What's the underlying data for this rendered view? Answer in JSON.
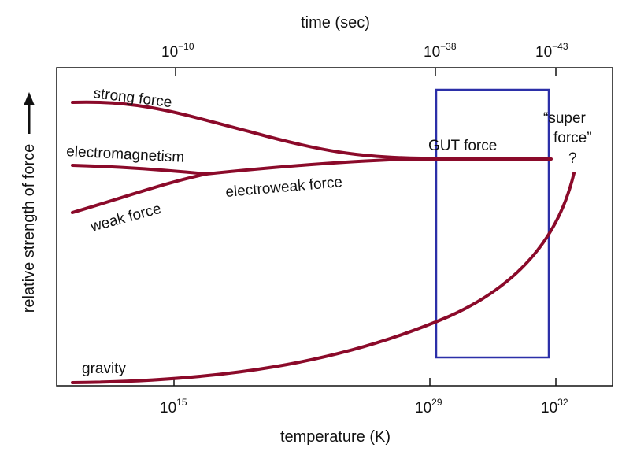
{
  "axes": {
    "top_title": "time (sec)",
    "bottom_title": "temperature (K)",
    "left_title": "relative strength of force"
  },
  "top_ticks": [
    {
      "base": "10",
      "exp": "−10"
    },
    {
      "base": "10",
      "exp": "−38"
    },
    {
      "base": "10",
      "exp": "−43"
    }
  ],
  "bottom_ticks": [
    {
      "base": "10",
      "exp": "15"
    },
    {
      "base": "10",
      "exp": "29"
    },
    {
      "base": "10",
      "exp": "32"
    }
  ],
  "curves": {
    "strong": "strong force",
    "em": "electromagnetism",
    "weak": "weak force",
    "electroweak": "electroweak force",
    "gut": "GUT force",
    "gravity": "gravity",
    "super_line1": "“super",
    "super_line2": "force”",
    "question": "?"
  },
  "colors": {
    "curve": "#8b0a2a",
    "box": "#2b2fa8",
    "frame": "#111111"
  }
}
